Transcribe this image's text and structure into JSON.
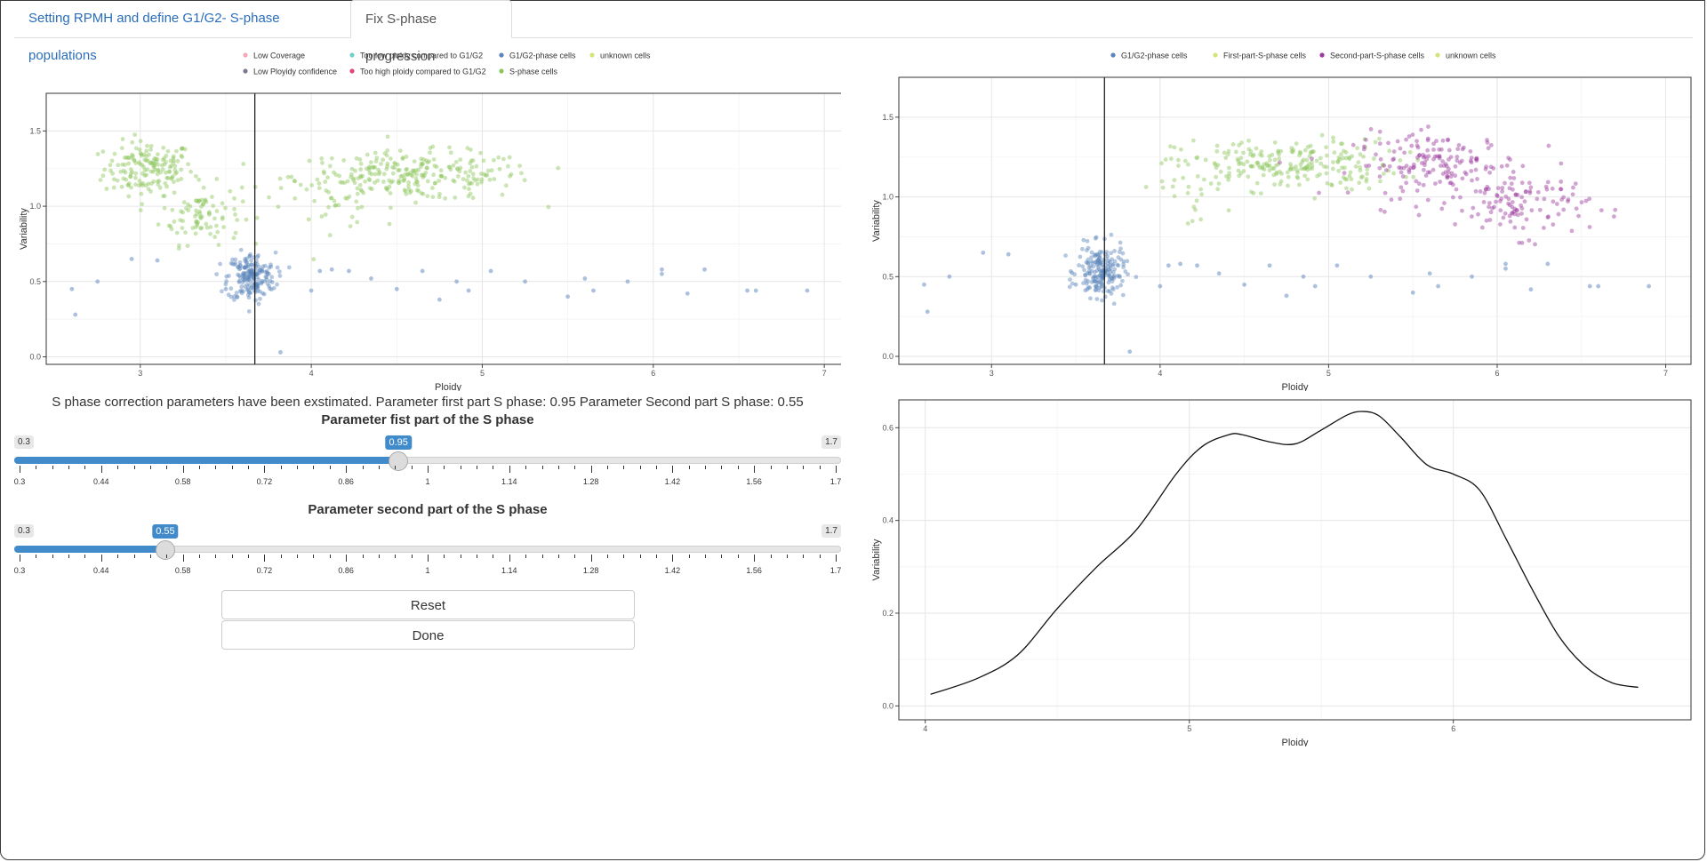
{
  "tabs": [
    {
      "label": "Setting RPMH and define G1/G2- S-phase populations",
      "active": false
    },
    {
      "label": "Fix S-phase progression",
      "active": true
    }
  ],
  "colors": {
    "low_coverage": "#f4a7b9",
    "too_low": "#6fd0c9",
    "g1g2": "#5a84bb",
    "unknown": "#d5e47a",
    "low_ploidy": "#7a7a95",
    "too_high": "#e0457b",
    "s_phase": "#8cc55a",
    "first_s": "#8cc55a",
    "second_s": "#9b3a9d",
    "accent": "#428bca"
  },
  "left_plot": {
    "legend": [
      {
        "label": "Low Coverage",
        "color": "#f4a7b9"
      },
      {
        "label": "Too low ploidy compared to G1/G2",
        "color": "#6fd0c9"
      },
      {
        "label": "G1/G2-phase cells",
        "color": "#5a84bb"
      },
      {
        "label": "unknown cells",
        "color": "#d5e47a"
      },
      {
        "label": "Low Ployidy confidence",
        "color": "#7a7a95"
      },
      {
        "label": "Too high ploidy compared to G1/G2",
        "color": "#e0457b"
      },
      {
        "label": "S-phase cells",
        "color": "#8cc55a"
      }
    ],
    "xlabel": "Ploidy",
    "ylabel": "Variability",
    "xticks": [
      "3",
      "4",
      "5",
      "6",
      "7"
    ],
    "yticks": [
      "0.0",
      "0.5",
      "1.0",
      "1.5"
    ]
  },
  "right_plot": {
    "legend": [
      {
        "label": "G1/G2-phase cells",
        "color": "#5a84bb"
      },
      {
        "label": "First-part-S-phase cells",
        "color": "#d5e47a"
      },
      {
        "label": "Second-part-S-phase cells",
        "color": "#9b3a9d"
      },
      {
        "label": "unknown cells",
        "color": "#d5e47a"
      }
    ],
    "xlabel": "Ploidy",
    "ylabel": "Variability",
    "xticks": [
      "3",
      "4",
      "5",
      "6",
      "7"
    ],
    "yticks": [
      "0.0",
      "0.5",
      "1.0",
      "1.5"
    ]
  },
  "density_plot": {
    "xlabel": "Ploidy",
    "ylabel": "Variability",
    "xticks": [
      "4",
      "5",
      "6"
    ],
    "yticks": [
      "0.0",
      "0.2",
      "0.4",
      "0.6"
    ]
  },
  "chart_data": [
    {
      "type": "scatter",
      "name_hint": "left",
      "xlabel": "Ploidy",
      "ylabel": "Variability",
      "xlim": [
        2.45,
        7.15
      ],
      "ylim": [
        -0.05,
        1.75
      ],
      "vline_x": 3.67,
      "grid": true,
      "legend_position": "top",
      "series": [
        {
          "name": "S-phase cells",
          "clusters": [
            {
              "cx": 3.05,
              "cy": 1.25,
              "sx": 0.13,
              "sy": 0.09,
              "n": 160
            },
            {
              "cx": 3.35,
              "cy": 0.95,
              "sx": 0.12,
              "sy": 0.1,
              "n": 90
            },
            {
              "cx": 4.6,
              "cy": 1.2,
              "sx": 0.35,
              "sy": 0.08,
              "n": 260
            },
            {
              "cx": 4.1,
              "cy": 1.05,
              "sx": 0.15,
              "sy": 0.1,
              "n": 25
            }
          ]
        },
        {
          "name": "G1/G2-phase cells",
          "clusters": [
            {
              "cx": 3.65,
              "cy": 0.53,
              "sx": 0.07,
              "sy": 0.08,
              "n": 190
            }
          ]
        }
      ],
      "outliers": [
        [
          2.6,
          0.45
        ],
        [
          2.62,
          0.28
        ],
        [
          2.75,
          0.5
        ],
        [
          2.95,
          0.65
        ],
        [
          3.1,
          0.64
        ],
        [
          3.5,
          0.45
        ],
        [
          3.82,
          0.03
        ],
        [
          4.0,
          0.44
        ],
        [
          4.05,
          0.57
        ],
        [
          4.12,
          0.58
        ],
        [
          4.22,
          0.57
        ],
        [
          4.35,
          0.52
        ],
        [
          4.5,
          0.45
        ],
        [
          4.65,
          0.57
        ],
        [
          4.75,
          0.38
        ],
        [
          4.85,
          0.5
        ],
        [
          4.92,
          0.44
        ],
        [
          5.05,
          0.57
        ],
        [
          5.25,
          0.5
        ],
        [
          5.5,
          0.4
        ],
        [
          5.6,
          0.52
        ],
        [
          5.65,
          0.44
        ],
        [
          5.85,
          0.5
        ],
        [
          6.05,
          0.58
        ],
        [
          6.05,
          0.55
        ],
        [
          6.2,
          0.42
        ],
        [
          6.3,
          0.58
        ],
        [
          6.55,
          0.44
        ],
        [
          6.6,
          0.44
        ],
        [
          6.9,
          0.44
        ]
      ]
    },
    {
      "type": "scatter",
      "name_hint": "right",
      "xlabel": "Ploidy",
      "ylabel": "Variability",
      "xlim": [
        2.45,
        7.15
      ],
      "ylim": [
        -0.05,
        1.75
      ],
      "vline_x": 3.67,
      "grid": true,
      "legend_position": "top",
      "series": [
        {
          "name": "First-part-S-phase cells",
          "clusters": [
            {
              "cx": 4.75,
              "cy": 1.2,
              "sx": 0.33,
              "sy": 0.08,
              "n": 230
            },
            {
              "cx": 4.15,
              "cy": 1.02,
              "sx": 0.12,
              "sy": 0.1,
              "n": 20
            }
          ]
        },
        {
          "name": "Second-part-S-phase cells",
          "clusters": [
            {
              "cx": 5.65,
              "cy": 1.2,
              "sx": 0.25,
              "sy": 0.1,
              "n": 170
            },
            {
              "cx": 6.15,
              "cy": 0.95,
              "sx": 0.2,
              "sy": 0.1,
              "n": 110
            }
          ]
        },
        {
          "name": "G1/G2-phase cells",
          "clusters": [
            {
              "cx": 3.65,
              "cy": 0.53,
              "sx": 0.07,
              "sy": 0.08,
              "n": 190
            }
          ]
        }
      ],
      "outliers": [
        [
          2.6,
          0.45
        ],
        [
          2.62,
          0.28
        ],
        [
          2.75,
          0.5
        ],
        [
          2.95,
          0.65
        ],
        [
          3.1,
          0.64
        ],
        [
          3.5,
          0.45
        ],
        [
          3.82,
          0.03
        ],
        [
          4.0,
          0.44
        ],
        [
          4.05,
          0.57
        ],
        [
          4.12,
          0.58
        ],
        [
          4.22,
          0.57
        ],
        [
          4.35,
          0.52
        ],
        [
          4.5,
          0.45
        ],
        [
          4.65,
          0.57
        ],
        [
          4.75,
          0.38
        ],
        [
          4.85,
          0.5
        ],
        [
          4.92,
          0.44
        ],
        [
          5.05,
          0.57
        ],
        [
          5.25,
          0.5
        ],
        [
          5.5,
          0.4
        ],
        [
          5.6,
          0.52
        ],
        [
          5.65,
          0.44
        ],
        [
          5.85,
          0.5
        ],
        [
          6.05,
          0.58
        ],
        [
          6.05,
          0.55
        ],
        [
          6.2,
          0.42
        ],
        [
          6.3,
          0.58
        ],
        [
          6.55,
          0.44
        ],
        [
          6.6,
          0.44
        ],
        [
          6.9,
          0.44
        ]
      ]
    },
    {
      "type": "line",
      "name_hint": "density",
      "xlabel": "Ploidy",
      "ylabel": "Variability",
      "xlim": [
        3.9,
        6.9
      ],
      "ylim": [
        -0.03,
        0.66
      ],
      "grid": true,
      "x": [
        4.02,
        4.2,
        4.35,
        4.5,
        4.65,
        4.8,
        4.95,
        5.05,
        5.15,
        5.2,
        5.3,
        5.4,
        5.5,
        5.6,
        5.66,
        5.72,
        5.8,
        5.9,
        6.0,
        6.1,
        6.2,
        6.3,
        6.4,
        6.5,
        6.6,
        6.7
      ],
      "y": [
        0.025,
        0.06,
        0.11,
        0.21,
        0.3,
        0.38,
        0.5,
        0.56,
        0.585,
        0.585,
        0.57,
        0.565,
        0.595,
        0.628,
        0.635,
        0.625,
        0.58,
        0.52,
        0.5,
        0.465,
        0.36,
        0.25,
        0.15,
        0.085,
        0.05,
        0.04
      ]
    }
  ],
  "info_text": "S phase correction parameters have been exstimated. Parameter first part S phase: 0.95 Parameter Second part S phase: 0.55",
  "slider1": {
    "label": "Parameter fist part of the S phase",
    "min": 0.3,
    "max": 1.7,
    "value": 0.95,
    "min_label": "0.3",
    "max_label": "1.7",
    "value_label": "0.95",
    "ticks": [
      "0.3",
      "0.44",
      "0.58",
      "0.72",
      "0.86",
      "1",
      "1.14",
      "1.28",
      "1.42",
      "1.56",
      "1.7"
    ]
  },
  "slider2": {
    "label": "Parameter second part of the S phase",
    "min": 0.3,
    "max": 1.7,
    "value": 0.55,
    "min_label": "0.3",
    "max_label": "1.7",
    "value_label": "0.55",
    "ticks": [
      "0.3",
      "0.44",
      "0.58",
      "0.72",
      "0.86",
      "1",
      "1.14",
      "1.28",
      "1.42",
      "1.56",
      "1.7"
    ]
  },
  "buttons": {
    "reset": "Reset",
    "done": "Done"
  }
}
